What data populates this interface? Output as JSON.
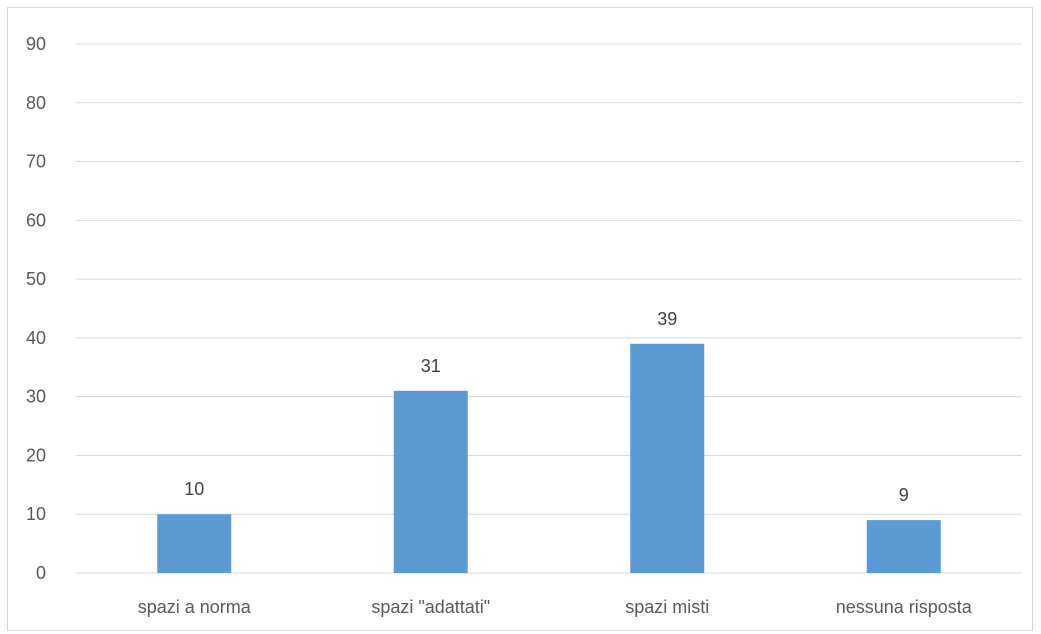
{
  "chart_data": {
    "type": "bar",
    "title": "",
    "xlabel": "",
    "ylabel": "",
    "categories": [
      "spazi a norma",
      "spazi \"adattati\"",
      "spazi misti",
      "nessuna risposta"
    ],
    "values": [
      10,
      31,
      39,
      9
    ],
    "data_labels": [
      "10",
      "31",
      "39",
      "9"
    ],
    "ylim": [
      0,
      90
    ],
    "yticks": [
      0,
      10,
      20,
      30,
      40,
      50,
      60,
      70,
      80,
      90
    ],
    "grid": true,
    "legend": "none",
    "bar_color": "#5B9BD5",
    "grid_color": "#D9D9D9",
    "text_color": "#595959"
  }
}
